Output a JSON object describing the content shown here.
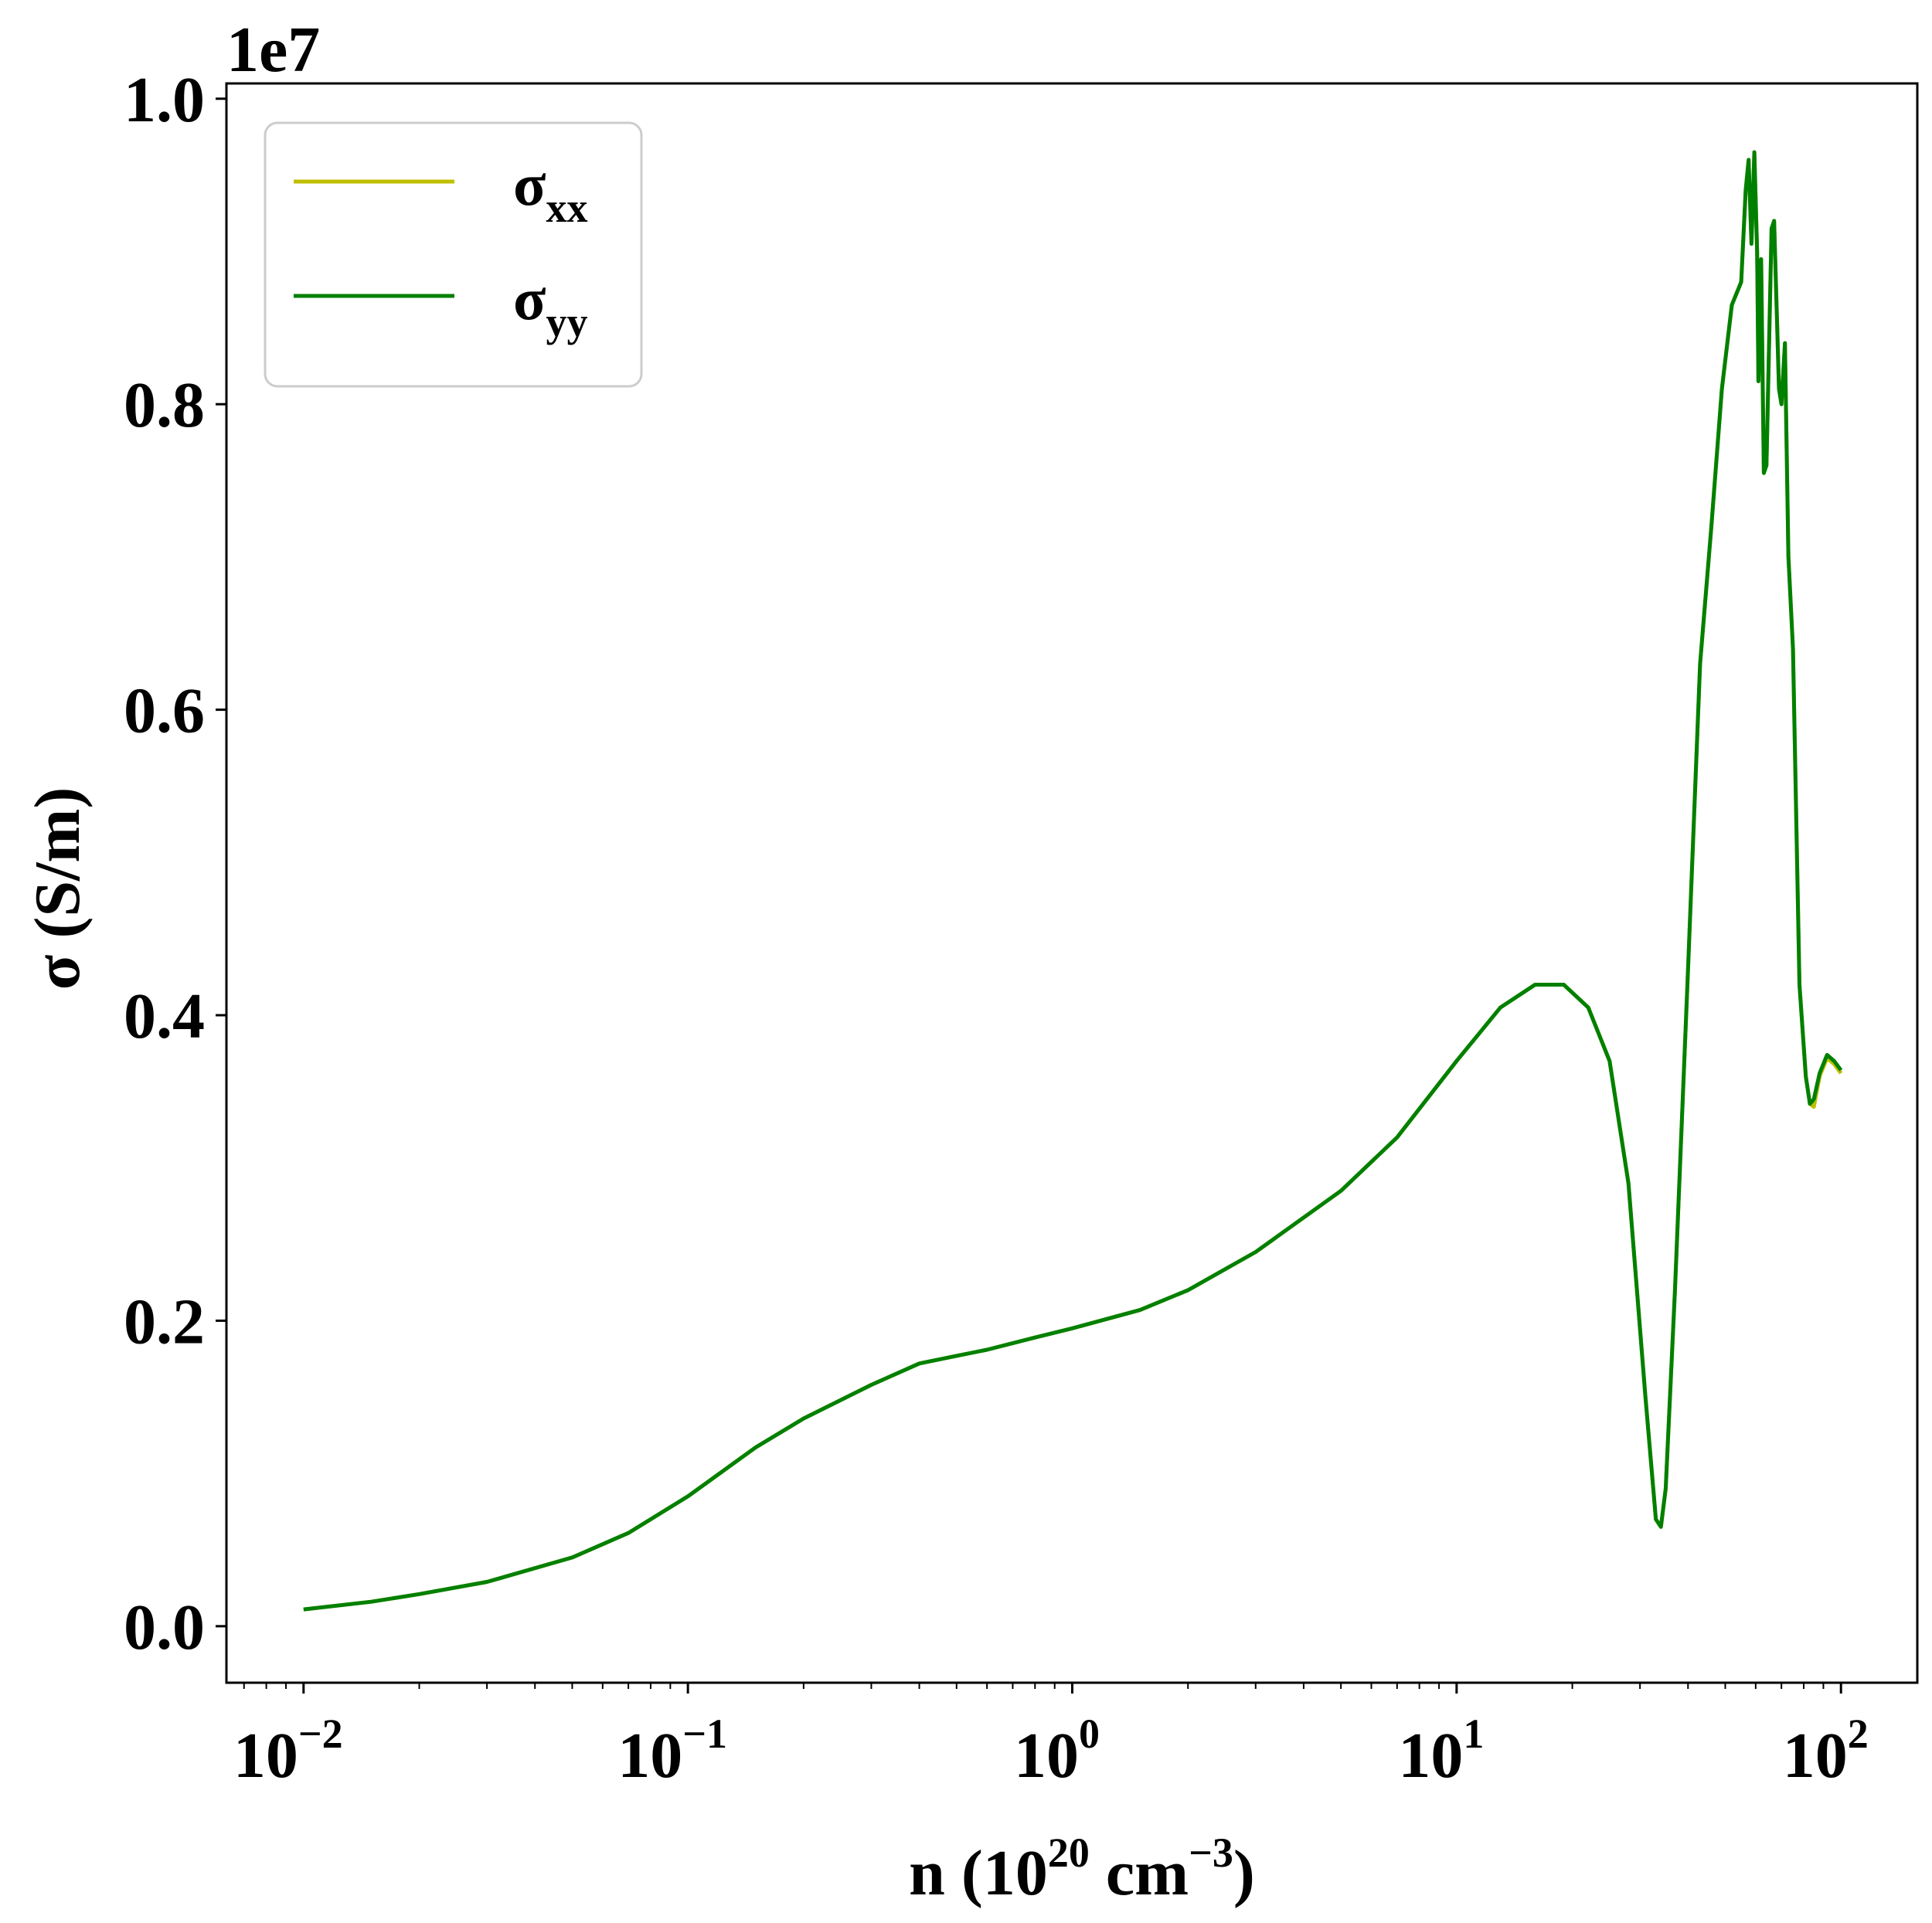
{
  "chart_data": {
    "type": "line",
    "x_scale": "log",
    "xlim": [
      0.0063,
      158
    ],
    "ylim": [
      -0.37,
      10.1
    ],
    "y_multiplier": "1e7",
    "xlabel": {
      "main": "n (10",
      "exp1": "20",
      "mid": " cm",
      "exp2": "−3",
      "end": ")"
    },
    "ylabel": "σ (S/m)",
    "x_ticks": [
      {
        "value": 0.01,
        "base": "10",
        "exp": "−2"
      },
      {
        "value": 0.1,
        "base": "10",
        "exp": "−1"
      },
      {
        "value": 1,
        "base": "10",
        "exp": "0"
      },
      {
        "value": 10,
        "base": "10",
        "exp": "1"
      },
      {
        "value": 100,
        "base": "10",
        "exp": "2"
      }
    ],
    "y_ticks": [
      {
        "value": 0,
        "label": "0.0"
      },
      {
        "value": 2,
        "label": "0.2"
      },
      {
        "value": 4,
        "label": "0.4"
      },
      {
        "value": 6,
        "label": "0.6"
      },
      {
        "value": 8,
        "label": "0.8"
      },
      {
        "value": 10,
        "label": "1.0"
      }
    ],
    "grid": false,
    "legend_position": "upper-left",
    "series": [
      {
        "name": "σxx",
        "name_main": "σ",
        "name_sub": "xx",
        "color": "#bfbf00",
        "points": [
          [
            0.01,
            0.11
          ],
          [
            0.015,
            0.16
          ],
          [
            0.02,
            0.21
          ],
          [
            0.03,
            0.29
          ],
          [
            0.05,
            0.45
          ],
          [
            0.07,
            0.61
          ],
          [
            0.1,
            0.85
          ],
          [
            0.15,
            1.17
          ],
          [
            0.2,
            1.36
          ],
          [
            0.3,
            1.58
          ],
          [
            0.4,
            1.72
          ],
          [
            0.5,
            1.77
          ],
          [
            0.6,
            1.81
          ],
          [
            0.8,
            1.89
          ],
          [
            1.0,
            1.95
          ],
          [
            1.5,
            2.07
          ],
          [
            2.0,
            2.2
          ],
          [
            3.0,
            2.45
          ],
          [
            5.0,
            2.85
          ],
          [
            7.0,
            3.2
          ],
          [
            10.0,
            3.7
          ],
          [
            13.0,
            4.05
          ],
          [
            16.0,
            4.2
          ],
          [
            19.0,
            4.2
          ],
          [
            22.0,
            4.05
          ],
          [
            25.0,
            3.7
          ],
          [
            28.0,
            2.9
          ],
          [
            31.0,
            1.5
          ],
          [
            33.0,
            0.7
          ],
          [
            34.0,
            0.65
          ],
          [
            35.0,
            0.9
          ],
          [
            37.0,
            2.2
          ],
          [
            40.0,
            4.3
          ],
          [
            43.0,
            6.3
          ],
          [
            46.0,
            7.2
          ],
          [
            49.0,
            8.1
          ],
          [
            52.0,
            8.65
          ],
          [
            55.0,
            8.8
          ],
          [
            56.5,
            9.4
          ],
          [
            57.5,
            9.6
          ],
          [
            58.5,
            9.05
          ],
          [
            59.5,
            9.65
          ],
          [
            60.5,
            9.0
          ],
          [
            61.0,
            8.15
          ],
          [
            62.0,
            8.95
          ],
          [
            63.0,
            7.55
          ],
          [
            64.0,
            7.6
          ],
          [
            66.0,
            9.15
          ],
          [
            67.0,
            9.2
          ],
          [
            69.0,
            8.1
          ],
          [
            70.0,
            8.0
          ],
          [
            71.5,
            8.4
          ],
          [
            73.0,
            7.0
          ],
          [
            75.0,
            6.4
          ],
          [
            78.0,
            4.2
          ],
          [
            81.0,
            3.6
          ],
          [
            83.0,
            3.42
          ],
          [
            85.0,
            3.4
          ],
          [
            88.0,
            3.6
          ],
          [
            92.0,
            3.72
          ],
          [
            96.0,
            3.68
          ],
          [
            100.0,
            3.62
          ]
        ]
      },
      {
        "name": "σyy",
        "name_main": "σ",
        "name_sub": "yy",
        "color": "#008000",
        "points": [
          [
            0.01,
            0.11
          ],
          [
            0.015,
            0.16
          ],
          [
            0.02,
            0.21
          ],
          [
            0.03,
            0.29
          ],
          [
            0.05,
            0.45
          ],
          [
            0.07,
            0.61
          ],
          [
            0.1,
            0.85
          ],
          [
            0.15,
            1.17
          ],
          [
            0.2,
            1.36
          ],
          [
            0.3,
            1.58
          ],
          [
            0.4,
            1.72
          ],
          [
            0.5,
            1.77
          ],
          [
            0.6,
            1.81
          ],
          [
            0.8,
            1.89
          ],
          [
            1.0,
            1.95
          ],
          [
            1.5,
            2.07
          ],
          [
            2.0,
            2.2
          ],
          [
            3.0,
            2.45
          ],
          [
            5.0,
            2.85
          ],
          [
            7.0,
            3.2
          ],
          [
            10.0,
            3.7
          ],
          [
            13.0,
            4.05
          ],
          [
            16.0,
            4.2
          ],
          [
            19.0,
            4.2
          ],
          [
            22.0,
            4.05
          ],
          [
            25.0,
            3.7
          ],
          [
            28.0,
            2.9
          ],
          [
            31.0,
            1.5
          ],
          [
            33.0,
            0.7
          ],
          [
            34.0,
            0.65
          ],
          [
            35.0,
            0.9
          ],
          [
            37.0,
            2.2
          ],
          [
            40.0,
            4.3
          ],
          [
            43.0,
            6.3
          ],
          [
            46.0,
            7.2
          ],
          [
            49.0,
            8.1
          ],
          [
            52.0,
            8.65
          ],
          [
            55.0,
            8.8
          ],
          [
            56.5,
            9.4
          ],
          [
            57.5,
            9.6
          ],
          [
            58.5,
            9.05
          ],
          [
            59.5,
            9.65
          ],
          [
            60.5,
            9.0
          ],
          [
            61.0,
            8.15
          ],
          [
            62.0,
            8.95
          ],
          [
            63.0,
            7.55
          ],
          [
            64.0,
            7.6
          ],
          [
            66.0,
            9.15
          ],
          [
            67.0,
            9.2
          ],
          [
            69.0,
            8.1
          ],
          [
            70.0,
            8.0
          ],
          [
            71.5,
            8.4
          ],
          [
            73.0,
            7.0
          ],
          [
            75.0,
            6.4
          ],
          [
            78.0,
            4.2
          ],
          [
            81.0,
            3.6
          ],
          [
            83.0,
            3.42
          ],
          [
            85.0,
            3.45
          ],
          [
            88.0,
            3.62
          ],
          [
            92.0,
            3.74
          ],
          [
            96.0,
            3.7
          ],
          [
            100.0,
            3.64
          ]
        ]
      }
    ]
  }
}
